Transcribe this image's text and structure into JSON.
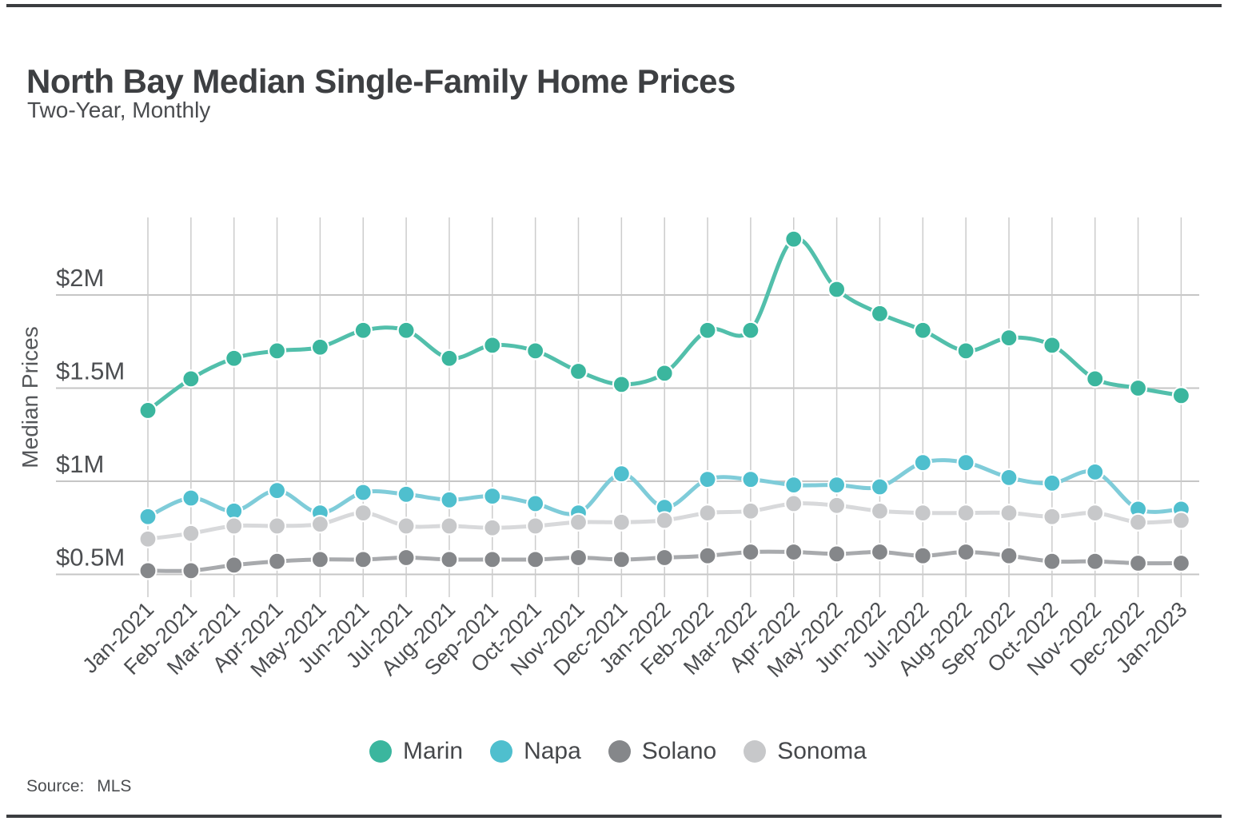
{
  "page": {
    "title": "North Bay Median Single-Family Home Prices",
    "subtitle": "Two-Year, Monthly",
    "source_label": "Source:",
    "source_value": "MLS"
  },
  "chart_data": {
    "type": "line",
    "title": "North Bay Median Single-Family Home Prices",
    "subtitle": "Two-Year, Monthly",
    "xlabel": "",
    "ylabel": "Median Prices",
    "units": "USD millions",
    "ylim": [
      0.38,
      2.42
    ],
    "grid": "both",
    "legend_position": "bottom-center",
    "xtick_rotation": 45,
    "x": [
      "Jan-2021",
      "Feb-2021",
      "Mar-2021",
      "Apr-2021",
      "May-2021",
      "Jun-2021",
      "Jul-2021",
      "Aug-2021",
      "Sep-2021",
      "Oct-2021",
      "Nov-2021",
      "Dec-2021",
      "Jan-2022",
      "Feb-2022",
      "Mar-2022",
      "Apr-2022",
      "May-2022",
      "Jun-2022",
      "Jul-2022",
      "Aug-2022",
      "Sep-2022",
      "Oct-2022",
      "Nov-2022",
      "Dec-2022",
      "Jan-2023"
    ],
    "yticks": [
      {
        "label": "$0.5M",
        "value": 0.5
      },
      {
        "label": "$1M",
        "value": 1.0
      },
      {
        "label": "$1.5M",
        "value": 1.5
      },
      {
        "label": "$2M",
        "value": 2.0
      }
    ],
    "series": [
      {
        "name": "Marin",
        "dot_color": "#3bb69e",
        "line_color": "#52bfab",
        "values": [
          1.38,
          1.55,
          1.66,
          1.7,
          1.72,
          1.81,
          1.81,
          1.66,
          1.73,
          1.7,
          1.59,
          1.52,
          1.58,
          1.81,
          1.81,
          2.3,
          2.03,
          1.9,
          1.81,
          1.7,
          1.77,
          1.73,
          1.55,
          1.5,
          1.46
        ]
      },
      {
        "name": "Napa",
        "dot_color": "#4fbfce",
        "line_color": "#7fccd9",
        "values": [
          0.81,
          0.91,
          0.84,
          0.95,
          0.83,
          0.94,
          0.93,
          0.9,
          0.92,
          0.88,
          0.83,
          1.04,
          0.86,
          1.01,
          1.01,
          0.98,
          0.98,
          0.97,
          1.1,
          1.1,
          1.02,
          0.99,
          1.05,
          0.85,
          0.85
        ]
      },
      {
        "name": "Solano",
        "dot_color": "#85878a",
        "line_color": "#a8aaad",
        "values": [
          0.52,
          0.52,
          0.55,
          0.57,
          0.58,
          0.58,
          0.59,
          0.58,
          0.58,
          0.58,
          0.59,
          0.58,
          0.59,
          0.6,
          0.62,
          0.62,
          0.61,
          0.62,
          0.6,
          0.62,
          0.6,
          0.57,
          0.57,
          0.56,
          0.56
        ]
      },
      {
        "name": "Sonoma",
        "dot_color": "#c7c8ca",
        "line_color": "#d8d9db",
        "values": [
          0.69,
          0.72,
          0.76,
          0.76,
          0.77,
          0.83,
          0.76,
          0.76,
          0.75,
          0.76,
          0.78,
          0.78,
          0.79,
          0.83,
          0.84,
          0.88,
          0.87,
          0.84,
          0.83,
          0.83,
          0.83,
          0.81,
          0.83,
          0.78,
          0.79
        ]
      }
    ]
  }
}
